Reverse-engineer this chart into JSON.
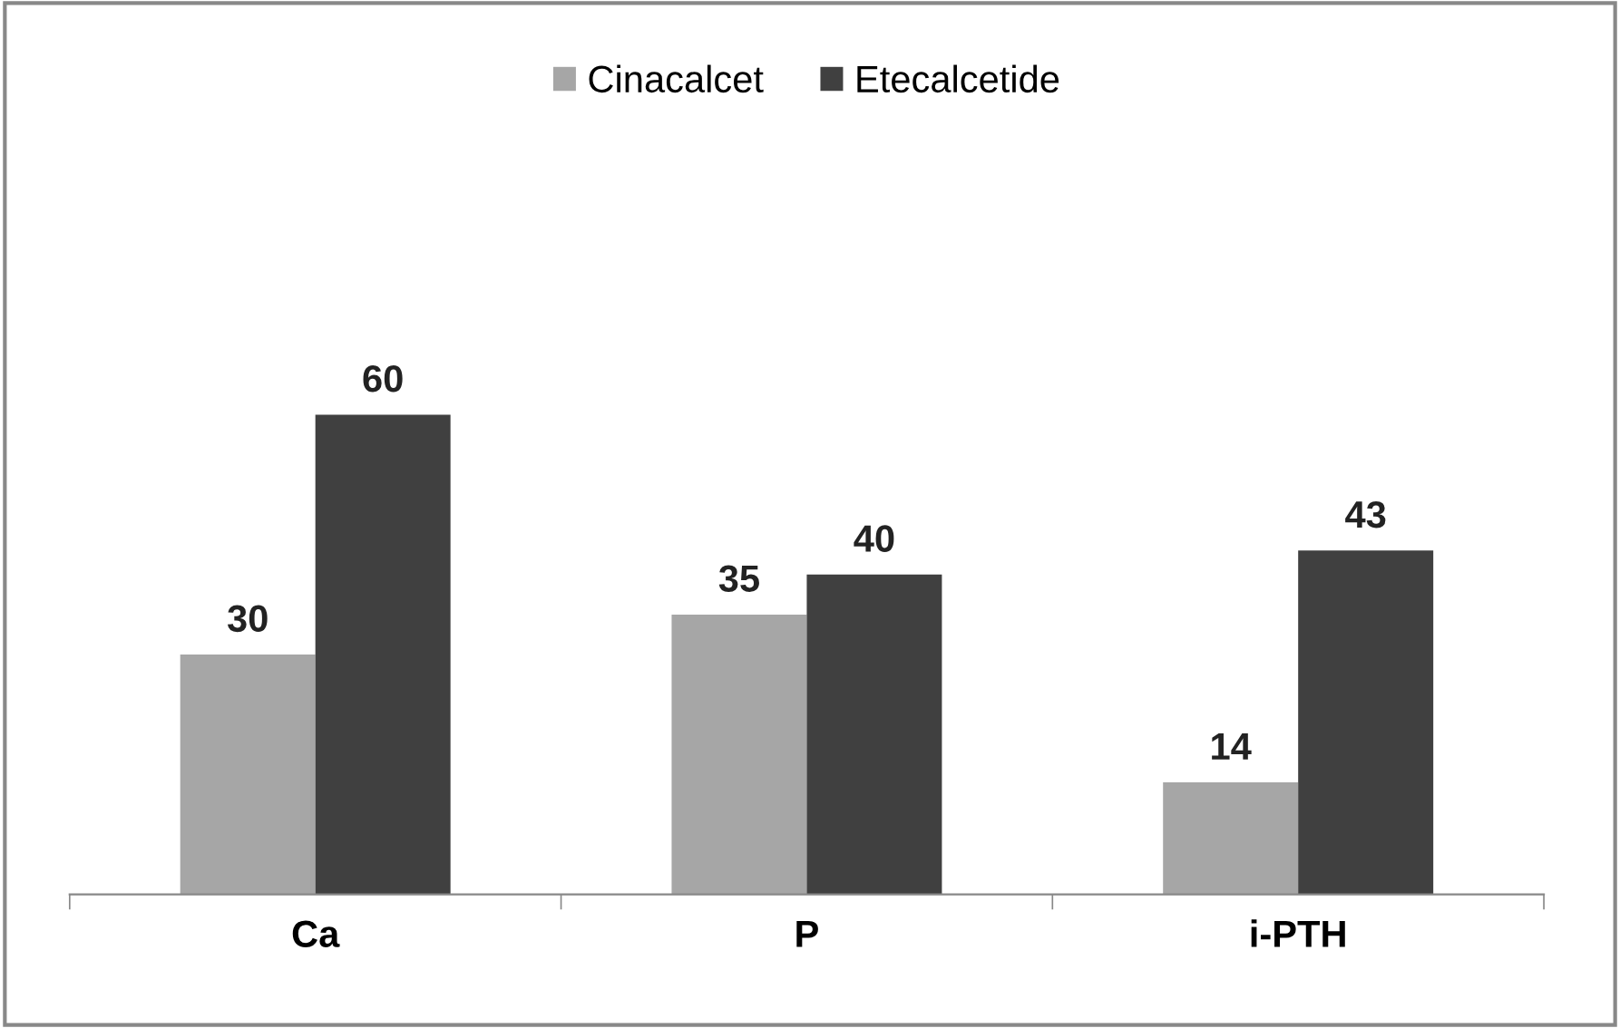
{
  "chart_data": {
    "type": "bar",
    "categories": [
      "Ca",
      "P",
      "i-PTH"
    ],
    "series": [
      {
        "name": "Cinacalcet",
        "color": "#a6a6a6",
        "values": [
          30,
          35,
          14
        ]
      },
      {
        "name": "Etecalcetide",
        "color": "#404040",
        "values": [
          60,
          40,
          43
        ]
      }
    ],
    "data_labels": true,
    "legend": "top",
    "grid": false
  }
}
